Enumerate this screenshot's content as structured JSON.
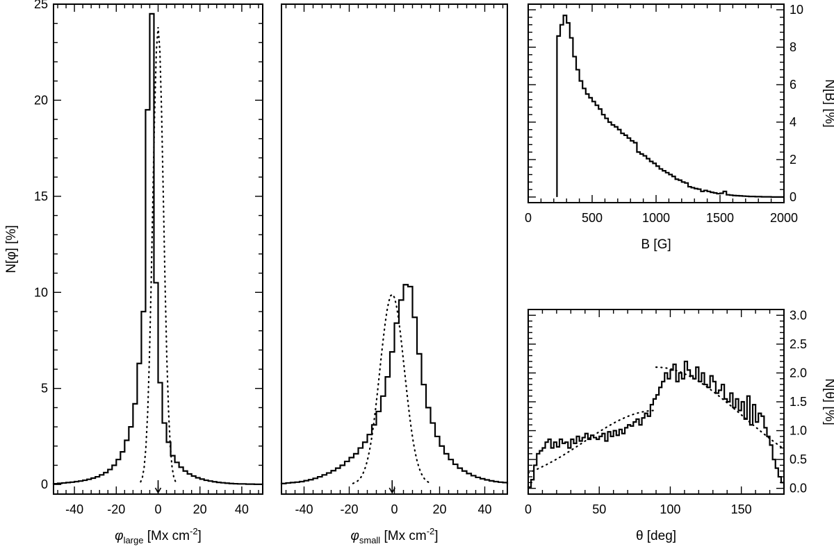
{
  "chart_data": [
    {
      "type": "bar",
      "style": "step-histogram",
      "xlabel": "φ",
      "xlabel_subscript": "large",
      "xlabel_unit": " [Mx cm",
      "xlabel_exp": "-2",
      "xlabel_close": "]",
      "ylabel": "N[φ] [%]",
      "xlim": [
        -50,
        50
      ],
      "ylim": [
        -0.5,
        25
      ],
      "xticks": [
        -40,
        -20,
        0,
        20,
        40
      ],
      "yticks": [
        0,
        5,
        10,
        15,
        20,
        25
      ],
      "ytick_side": "left",
      "arrow_at": 0,
      "bin_width": 2,
      "bins_start": -50,
      "values": [
        0.04,
        0.06,
        0.08,
        0.1,
        0.12,
        0.15,
        0.18,
        0.22,
        0.27,
        0.33,
        0.4,
        0.5,
        0.62,
        0.78,
        1.0,
        1.3,
        1.7,
        2.3,
        3.0,
        4.2,
        6.3,
        9.0,
        19.5,
        24.5,
        10.5,
        5.3,
        3.2,
        2.2,
        1.5,
        1.15,
        0.9,
        0.7,
        0.55,
        0.44,
        0.35,
        0.28,
        0.22,
        0.18,
        0.14,
        0.11,
        0.09,
        0.07,
        0.05,
        0.04,
        0.03,
        0.03,
        0.02,
        0.02,
        0.01,
        0.01
      ],
      "gaussian_fit": {
        "amplitude": 23.8,
        "center": 0,
        "sigma": 2.6
      }
    },
    {
      "type": "bar",
      "style": "step-histogram",
      "xlabel": "φ",
      "xlabel_subscript": "small",
      "xlabel_unit": " [Mx cm",
      "xlabel_exp": "-2",
      "xlabel_close": "]",
      "ylabel": "",
      "xlim": [
        -50,
        50
      ],
      "ylim": [
        -0.5,
        25
      ],
      "xticks": [
        -40,
        -20,
        0,
        20,
        40
      ],
      "yticks": [],
      "ytick_side": "none",
      "arrow_at": -1,
      "bin_width": 2,
      "bins_start": -50,
      "values": [
        0.05,
        0.08,
        0.1,
        0.12,
        0.15,
        0.2,
        0.25,
        0.32,
        0.4,
        0.5,
        0.6,
        0.72,
        0.85,
        1.0,
        1.2,
        1.4,
        1.6,
        1.9,
        2.2,
        2.6,
        3.1,
        3.8,
        4.6,
        5.6,
        6.9,
        8.4,
        9.6,
        10.4,
        10.3,
        8.7,
        6.8,
        5.2,
        4.0,
        3.2,
        2.5,
        2.0,
        1.6,
        1.3,
        1.05,
        0.85,
        0.7,
        0.57,
        0.46,
        0.37,
        0.3,
        0.24,
        0.19,
        0.15,
        0.12,
        0.1
      ],
      "gaussian_fit": {
        "amplitude": 9.9,
        "center": -1,
        "sigma": 5.4
      }
    },
    {
      "type": "bar",
      "style": "step-histogram",
      "xlabel": "B [G]",
      "ylabel": "N[B] [%]",
      "xlim": [
        0,
        2000
      ],
      "ylim": [
        -0.3,
        10.3
      ],
      "xticks": [
        0,
        500,
        1000,
        1500,
        2000
      ],
      "yticks": [
        0,
        2,
        4,
        6,
        8,
        10
      ],
      "ytick_side": "right",
      "bin_width": 25,
      "bins_start": 225,
      "values": [
        8.6,
        9.2,
        9.7,
        9.3,
        8.5,
        7.5,
        6.8,
        6.2,
        5.8,
        5.5,
        5.3,
        5.1,
        4.9,
        4.7,
        4.4,
        4.2,
        4.0,
        3.85,
        3.75,
        3.6,
        3.4,
        3.3,
        3.15,
        3.0,
        2.9,
        2.4,
        2.3,
        2.2,
        2.05,
        1.9,
        1.8,
        1.65,
        1.5,
        1.4,
        1.3,
        1.2,
        1.1,
        0.95,
        0.9,
        0.8,
        0.75,
        0.55,
        0.5,
        0.45,
        0.42,
        0.3,
        0.35,
        0.3,
        0.25,
        0.22,
        0.18,
        0.2,
        0.3,
        0.12,
        0.1,
        0.08,
        0.07,
        0.06,
        0.05,
        0.04,
        0.03,
        0.03,
        0.02,
        0.02,
        0.01,
        0.01,
        0.01,
        0.0,
        0.0,
        0.0,
        0.0
      ]
    },
    {
      "type": "bar",
      "style": "step-histogram",
      "xlabel": "θ [deg]",
      "ylabel": "N[θ] [%]",
      "xlim": [
        0,
        180
      ],
      "ylim": [
        -0.1,
        3.1
      ],
      "xticks": [
        0,
        50,
        100,
        150
      ],
      "yticks": [
        0.0,
        0.5,
        1.0,
        1.5,
        2.0,
        2.5,
        3.0
      ],
      "ytick_side": "right",
      "bin_width": 2,
      "bins_start": 0,
      "values": [
        0.02,
        0.15,
        0.4,
        0.6,
        0.65,
        0.7,
        0.8,
        0.85,
        0.7,
        0.8,
        0.72,
        0.85,
        0.78,
        0.8,
        0.7,
        0.85,
        0.78,
        0.9,
        0.82,
        0.88,
        0.95,
        0.85,
        0.92,
        0.88,
        0.85,
        0.9,
        0.95,
        0.82,
        0.98,
        0.9,
        1.0,
        0.92,
        1.02,
        0.95,
        1.05,
        1.1,
        1.08,
        1.15,
        1.2,
        1.1,
        1.22,
        1.3,
        1.25,
        1.45,
        1.55,
        1.62,
        1.75,
        1.85,
        2.0,
        1.9,
        2.05,
        2.15,
        1.85,
        2.0,
        1.9,
        2.2,
        2.05,
        1.95,
        1.9,
        2.1,
        1.85,
        2.0,
        1.8,
        1.75,
        1.95,
        1.85,
        1.65,
        1.7,
        1.8,
        1.55,
        1.5,
        1.65,
        1.4,
        1.55,
        1.35,
        1.5,
        1.2,
        1.6,
        1.1,
        1.45,
        1.15,
        1.3,
        1.25,
        1.05,
        0.9,
        0.75,
        0.5,
        0.35,
        0.2,
        0.1
      ],
      "fit_segments": [
        {
          "from": 0,
          "to": 90,
          "amplitude": 1.35,
          "center": 90,
          "sigma": 50
        },
        {
          "from": 90,
          "to": 180,
          "amplitude": 2.1,
          "center": 90,
          "sigma": 60
        }
      ]
    }
  ]
}
